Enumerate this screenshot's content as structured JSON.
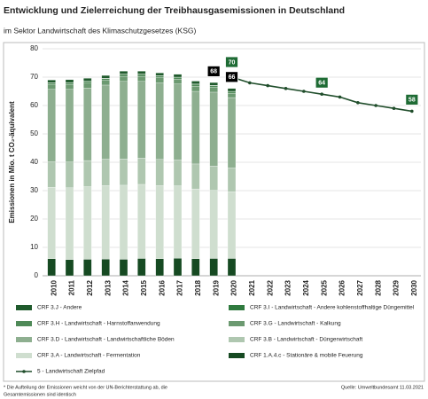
{
  "chart_data": {
    "type": "stacked_bar_line",
    "title": "Entwicklung und Zielerreichung der Treibhausgasemissionen in Deutschland",
    "subtitle": "im Sektor Landwirtschaft des Klimaschutzgesetzes (KSG)",
    "y_label": "Emissionen in Mio. t CO₂-äquivalent",
    "categories": [
      "2010",
      "2011",
      "2012",
      "2013",
      "2014",
      "2015",
      "2016",
      "2017",
      "2018",
      "2019",
      "2020",
      "2021",
      "2022",
      "2023",
      "2024",
      "2025",
      "2026",
      "2027",
      "2028",
      "2029",
      "2030"
    ],
    "ylim": [
      0,
      80
    ],
    "yticks": [
      0,
      10,
      20,
      30,
      40,
      50,
      60,
      70,
      80
    ],
    "grid": true,
    "series": [
      {
        "name": "CRF 3.J - Andere",
        "color": "#1f5a2c",
        "kind": "bar",
        "values": [
          1.0,
          1.0,
          1.0,
          1.0,
          1.0,
          1.0,
          1.0,
          1.0,
          1.0,
          1.0,
          1.0,
          null,
          null,
          null,
          null,
          null,
          null,
          null,
          null,
          null,
          null
        ]
      },
      {
        "name": "CRF 3.I - Landwirtschaft - Andere kohlenstoffhaltige Düngemittel",
        "color": "#2f7a3e",
        "kind": "bar",
        "values": [
          0.1,
          0.1,
          0.1,
          0.1,
          0.1,
          0.1,
          0.1,
          0.1,
          0.1,
          0.1,
          0.1,
          null,
          null,
          null,
          null,
          null,
          null,
          null,
          null,
          null,
          null
        ]
      },
      {
        "name": "CRF 3.H - Landwirtschaft - Harnstoffanwendung",
        "color": "#4f8a58",
        "kind": "bar",
        "values": [
          0.6,
          0.6,
          0.6,
          0.6,
          0.7,
          0.7,
          0.6,
          0.6,
          0.7,
          0.6,
          0.6,
          null,
          null,
          null,
          null,
          null,
          null,
          null,
          null,
          null,
          null
        ]
      },
      {
        "name": "CRF 3.G - Landwirtschaft - Kalkung",
        "color": "#6c9a71",
        "kind": "bar",
        "values": [
          1.6,
          1.7,
          1.7,
          1.7,
          1.8,
          1.8,
          1.8,
          1.7,
          1.8,
          1.7,
          1.5,
          null,
          null,
          null,
          null,
          null,
          null,
          null,
          null,
          null,
          null
        ]
      },
      {
        "name": "CRF 3.D - Landwirtschaft - Landwirtschaftliche Böden",
        "color": "#8eaf90",
        "kind": "bar",
        "values": [
          25.5,
          25.6,
          25.6,
          26.1,
          27.3,
          27.0,
          27.0,
          26.8,
          25.6,
          26.0,
          24.8,
          null,
          null,
          null,
          null,
          null,
          null,
          null,
          null,
          null,
          null
        ]
      },
      {
        "name": "CRF 3.B - Landwirtschaft - Düngerwirtschaft",
        "color": "#afc7b0",
        "kind": "bar",
        "values": [
          9.0,
          9.1,
          9.2,
          9.3,
          9.3,
          9.3,
          9.2,
          9.1,
          8.8,
          8.6,
          8.4,
          null,
          null,
          null,
          null,
          null,
          null,
          null,
          null,
          null,
          null
        ]
      },
      {
        "name": "CRF 3.A - Landwirtschaft - Fermentation",
        "color": "#cfdecf",
        "kind": "bar",
        "values": [
          25.2,
          25.3,
          25.6,
          25.9,
          26.1,
          26.1,
          25.8,
          25.5,
          24.6,
          24.0,
          23.5,
          null,
          null,
          null,
          null,
          null,
          null,
          null,
          null,
          null,
          null
        ]
      },
      {
        "name": "CRF 1.A.4.c - Stationäre & mobile Feuerung",
        "color": "#164a22",
        "kind": "bar",
        "values": [
          6.0,
          5.7,
          5.8,
          5.9,
          5.8,
          6.1,
          6.0,
          6.2,
          6.0,
          6.1,
          6.1,
          null,
          null,
          null,
          null,
          null,
          null,
          null,
          null,
          null,
          null
        ]
      },
      {
        "name": "5 - Landwirtschaft Zielpfad",
        "color": "#1f4d2a",
        "kind": "line",
        "values": [
          null,
          null,
          null,
          null,
          null,
          null,
          null,
          null,
          null,
          null,
          70,
          68,
          67,
          66,
          65,
          64,
          63,
          61,
          60,
          59,
          58
        ]
      }
    ],
    "annotations": [
      {
        "text": "68",
        "x": "2019",
        "y": 68,
        "color": "#000000"
      },
      {
        "text": "70",
        "x": "2020",
        "y": 70,
        "color": "#1e6b34"
      },
      {
        "text": "66",
        "x": "2020",
        "y": 66,
        "color": "#000000"
      },
      {
        "text": "64",
        "x": "2025",
        "y": 64,
        "color": "#1e6b34"
      },
      {
        "text": "58",
        "x": "2030",
        "y": 58,
        "color": "#1e6b34"
      }
    ],
    "footnote": [
      "* Die Aufteilung der Emissionen weicht von der UN-Berichterstattung ab, die",
      "Gesamtemissionen sind identisch"
    ],
    "source": "Quelle: Umweltbundesamt  11.03.2021"
  }
}
